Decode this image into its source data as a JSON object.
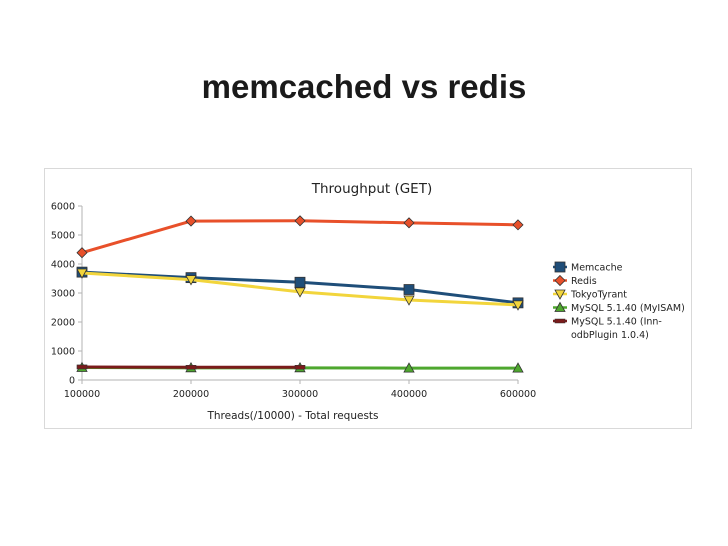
{
  "slide": {
    "title": "memcached vs redis"
  },
  "chart_data": {
    "type": "line",
    "title": "Throughput (GET)",
    "xlabel": "Threads(/10000) - Total requests",
    "ylabel": "",
    "x": [
      100000,
      200000,
      300000,
      400000,
      600000
    ],
    "x_tick_labels": [
      "100000",
      "200000",
      "300000",
      "400000",
      "600000"
    ],
    "ylim": [
      0,
      6000
    ],
    "y_ticks": [
      0,
      1000,
      2000,
      3000,
      4000,
      5000,
      6000
    ],
    "y_tick_labels": [
      "0",
      "1000",
      "2000",
      "3000",
      "4000",
      "5000",
      "6000"
    ],
    "grid": false,
    "legend": "right",
    "series": [
      {
        "name": "Memcache",
        "color": "#1f4e79",
        "marker": "square",
        "values": [
          3720,
          3530,
          3370,
          3120,
          2660
        ]
      },
      {
        "name": "Redis",
        "color": "#e8502a",
        "marker": "diamond",
        "values": [
          4390,
          5480,
          5490,
          5420,
          5350
        ]
      },
      {
        "name": "TokyoTyrant",
        "color": "#f2d53c",
        "marker": "triangle-down",
        "values": [
          3690,
          3460,
          3040,
          2760,
          2590
        ]
      },
      {
        "name": "MySQL 5.1.40 (MyISAM)",
        "color": "#4ea72e",
        "marker": "triangle-up",
        "values": [
          430,
          420,
          420,
          410,
          410
        ]
      },
      {
        "name": "MySQL 5.1.40 (InnodbPlugin 1.0.4)",
        "legend_lines": [
          "MySQL 5.1.40 (Inn-",
          "odbPlugin 1.0.4)"
        ],
        "color": "#7b1b1b",
        "marker": "x",
        "values": [
          450,
          440,
          440,
          null,
          null
        ]
      }
    ]
  }
}
